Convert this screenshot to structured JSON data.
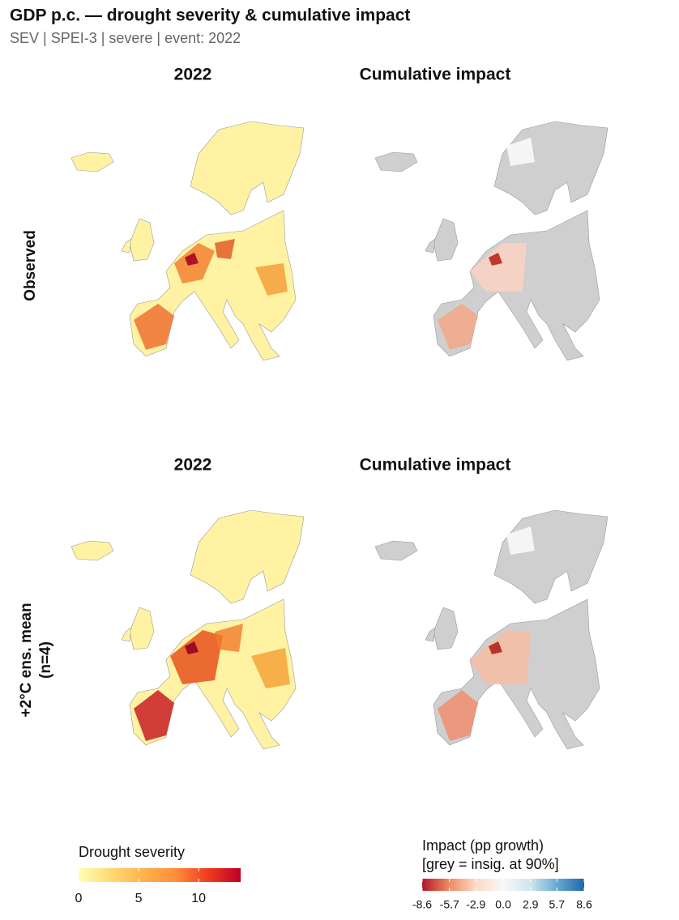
{
  "title": "GDP p.c. — drought severity & cumulative impact",
  "subtitle": "SEV | SPEI-3 | severe  |  event: 2022",
  "rows": [
    {
      "label_lines": [
        "Observed"
      ],
      "panel_titles": [
        "2022",
        "Cumulative impact"
      ]
    },
    {
      "label_lines": [
        "+2°C ens. mean",
        "(n=4)"
      ],
      "panel_titles": [
        "2022",
        "Cumulative impact"
      ]
    }
  ],
  "legends": {
    "severity": {
      "title_lines": [
        "Drought severity"
      ],
      "colors": [
        "#ffffb2",
        "#fed976",
        "#feb24c",
        "#fd8d3c",
        "#f03b20",
        "#bd0026"
      ],
      "lim": [
        0,
        13.5
      ],
      "ticks": [
        0,
        5,
        10
      ]
    },
    "impact": {
      "title_lines": [
        "Impact (pp growth)",
        "[grey = insig. at 90%]"
      ],
      "colors": [
        "#b2182b",
        "#ef8a62",
        "#fddbc7",
        "#f7f7f7",
        "#d1e5f0",
        "#67a9cf",
        "#2166ac"
      ],
      "lim": [
        -8.6,
        8.6
      ],
      "ticks": [
        -8.6,
        -5.7,
        -2.9,
        {
          "value": 0,
          "label": "0.0"
        },
        2.9,
        5.7,
        8.6
      ]
    }
  }
}
